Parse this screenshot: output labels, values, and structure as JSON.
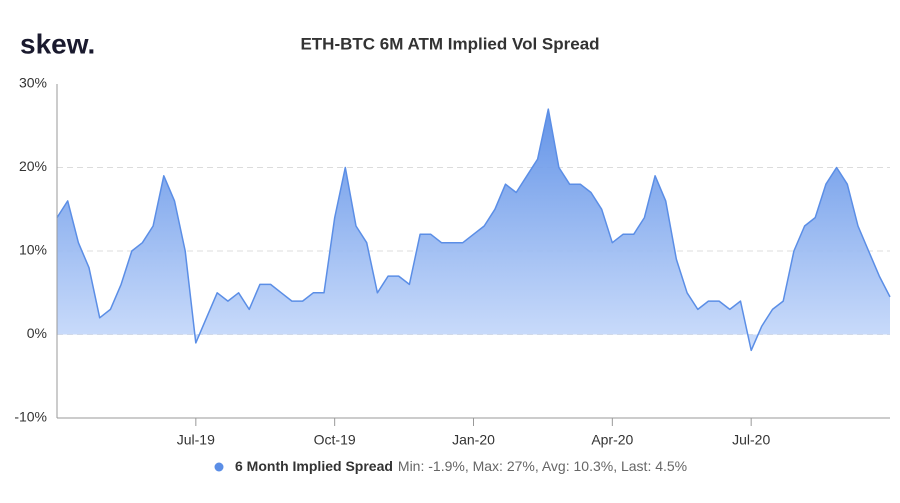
{
  "brand": "skew.",
  "chart_data": {
    "type": "area",
    "title": "ETH-BTC 6M ATM Implied Vol Spread",
    "categories": [
      null,
      null,
      null,
      null,
      null,
      null,
      null,
      null,
      null,
      null,
      null,
      null,
      null,
      "Jul-19",
      null,
      null,
      null,
      null,
      null,
      null,
      null,
      null,
      null,
      null,
      null,
      null,
      "Oct-19",
      null,
      null,
      null,
      null,
      null,
      null,
      null,
      null,
      null,
      null,
      null,
      null,
      "Jan-20",
      null,
      null,
      null,
      null,
      null,
      null,
      null,
      null,
      null,
      null,
      null,
      null,
      "Apr-20",
      null,
      null,
      null,
      null,
      null,
      null,
      null,
      null,
      null,
      null,
      null,
      null,
      "Jul-20",
      null,
      null,
      null,
      null,
      null,
      null,
      null,
      null,
      null,
      null,
      null,
      null,
      null
    ],
    "series": [
      {
        "name": "6 Month Implied Spread",
        "color": "#5b8ee6",
        "values": [
          14,
          16,
          11,
          8,
          2,
          3,
          6,
          10,
          11,
          13,
          19,
          16,
          10,
          -1,
          2,
          5,
          4,
          5,
          3,
          6,
          6,
          5,
          4,
          4,
          5,
          5,
          14,
          20,
          13,
          11,
          5,
          7,
          7,
          6,
          12,
          12,
          11,
          11,
          11,
          12,
          13,
          15,
          18,
          17,
          19,
          21,
          27,
          20,
          18,
          18,
          17,
          15,
          11,
          12,
          12,
          14,
          19,
          16,
          9,
          5,
          3,
          4,
          4,
          3,
          4,
          -1.9,
          1,
          3,
          4,
          10,
          13,
          14,
          18,
          20,
          18,
          13,
          10,
          7,
          4.5
        ]
      }
    ],
    "legend_stats": "Min: -1.9%, Max: 27%, Avg: 10.3%, Last: 4.5%",
    "ylim": [
      -10,
      30
    ],
    "yticks": [
      {
        "value": -10,
        "label": "-10%"
      },
      {
        "value": 0,
        "label": "0%"
      },
      {
        "value": 10,
        "label": "10%"
      },
      {
        "value": 20,
        "label": "20%"
      },
      {
        "value": 30,
        "label": "30%"
      }
    ],
    "grid": true
  }
}
